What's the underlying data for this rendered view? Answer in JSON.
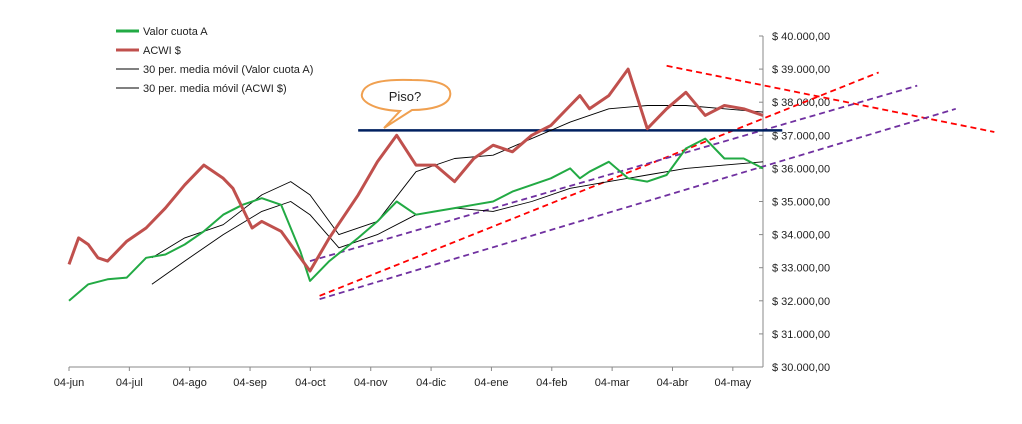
{
  "chart_data": {
    "type": "line",
    "x_ticks": [
      "04-jun",
      "04-jul",
      "04-ago",
      "04-sep",
      "04-oct",
      "04-nov",
      "04-dic",
      "04-ene",
      "04-feb",
      "04-mar",
      "04-abr",
      "04-may"
    ],
    "y_ticks": [
      "$ 30.000,00",
      "$ 31.000,00",
      "$ 32.000,00",
      "$ 33.000,00",
      "$ 34.000,00",
      "$ 35.000,00",
      "$ 36.000,00",
      "$ 37.000,00",
      "$ 38.000,00",
      "$ 39.000,00",
      "$ 40.000,00"
    ],
    "ylim": [
      30000,
      40000
    ],
    "grid": false,
    "legend_position": "top-left",
    "series": [
      {
        "name": "Valor cuota A",
        "color": "#22aa44",
        "x": [
          0,
          10,
          20,
          30,
          40,
          50,
          60,
          70,
          80,
          90,
          100,
          110,
          120,
          125,
          135,
          150,
          160,
          170,
          180,
          190,
          200,
          210,
          220,
          230,
          240,
          250,
          260,
          265,
          270,
          280,
          290,
          300,
          310,
          320,
          330,
          340,
          350,
          360
        ],
        "y": [
          32000,
          32500,
          32650,
          32700,
          33300,
          33400,
          33700,
          34100,
          34600,
          34900,
          35100,
          34900,
          33500,
          32600,
          33200,
          33900,
          34400,
          35000,
          34600,
          34700,
          34800,
          34900,
          35000,
          35300,
          35500,
          35700,
          36000,
          35700,
          35900,
          36200,
          35700,
          35600,
          35800,
          36600,
          36900,
          36300,
          36300,
          36000
        ]
      },
      {
        "name": "ACWI $",
        "color": "#c0504d",
        "x": [
          0,
          5,
          10,
          15,
          20,
          30,
          40,
          50,
          60,
          70,
          80,
          85,
          90,
          95,
          100,
          110,
          120,
          125,
          135,
          150,
          160,
          170,
          180,
          190,
          200,
          210,
          220,
          230,
          240,
          250,
          260,
          265,
          270,
          280,
          290,
          300,
          310,
          320,
          330,
          340,
          350,
          360
        ],
        "y": [
          33100,
          33900,
          33700,
          33300,
          33200,
          33800,
          34200,
          34800,
          35500,
          36100,
          35700,
          35400,
          34800,
          34200,
          34400,
          34100,
          33300,
          32900,
          33900,
          35200,
          36200,
          37000,
          36100,
          36100,
          35600,
          36300,
          36700,
          36500,
          37000,
          37300,
          37900,
          38200,
          37800,
          38200,
          39000,
          37200,
          37800,
          38300,
          37600,
          37900,
          37800,
          37600
        ]
      },
      {
        "name": "30 per. media móvil (Valor cuota A)",
        "color": "#000000",
        "x": [
          43,
          60,
          80,
          100,
          115,
          125,
          140,
          160,
          180,
          200,
          220,
          240,
          260,
          280,
          300,
          320,
          340,
          360
        ],
        "y": [
          32500,
          33200,
          34000,
          34700,
          35000,
          34600,
          33600,
          34000,
          34600,
          34800,
          34700,
          35000,
          35400,
          35600,
          35800,
          36000,
          36100,
          36200
        ]
      },
      {
        "name": "30 per. media móvil (ACWI $)",
        "color": "#000000",
        "x": [
          43,
          60,
          80,
          100,
          115,
          125,
          140,
          160,
          180,
          200,
          220,
          240,
          260,
          280,
          300,
          320,
          340,
          360
        ],
        "y": [
          33300,
          33900,
          34300,
          35200,
          35600,
          35200,
          34000,
          34400,
          35900,
          36300,
          36400,
          36900,
          37400,
          37800,
          37900,
          37900,
          37800,
          37700
        ]
      }
    ],
    "trend_lines": [
      {
        "color": "#ff0000",
        "style": "dashed",
        "x": [
          130,
          420
        ],
        "y": [
          32150,
          38900
        ]
      },
      {
        "color": "#ff0000",
        "style": "dashed",
        "x": [
          310,
          480
        ],
        "y": [
          39100,
          37100
        ]
      },
      {
        "color": "#7030a0",
        "style": "dashed",
        "x": [
          125,
          440
        ],
        "y": [
          33200,
          38500
        ]
      },
      {
        "color": "#7030a0",
        "style": "dashed",
        "x": [
          130,
          460
        ],
        "y": [
          32050,
          37800
        ]
      },
      {
        "color": "#002060",
        "style": "solid",
        "x": [
          150,
          370
        ],
        "y": [
          37150,
          37150
        ]
      }
    ],
    "annotations": [
      {
        "text": "Piso?"
      }
    ]
  }
}
